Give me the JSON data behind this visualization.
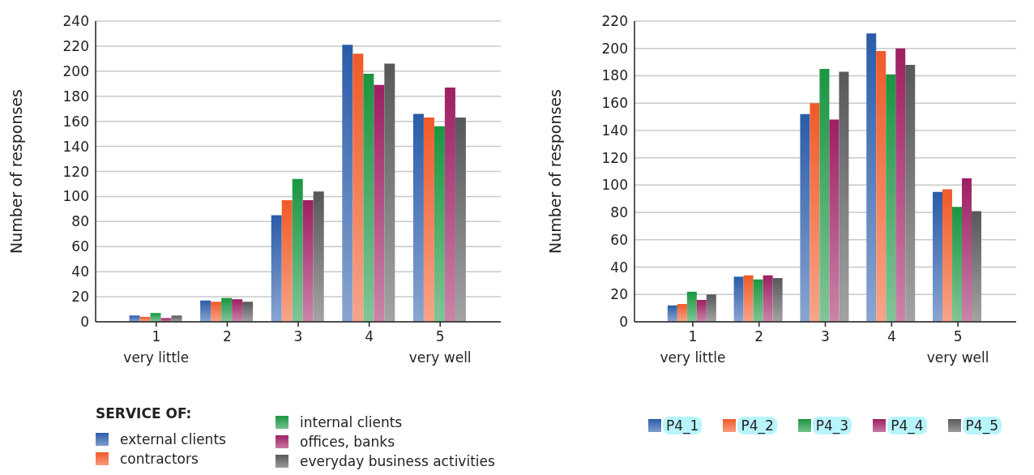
{
  "chart_data": [
    {
      "type": "bar",
      "ylabel": "Number of responses",
      "legend_title": "SERVICE OF:",
      "categories": [
        "1\nvery little",
        "2",
        "3",
        "4",
        "5\nvery well"
      ],
      "ylim": [
        0,
        240
      ],
      "yticks": [
        0,
        20,
        40,
        60,
        80,
        100,
        120,
        140,
        160,
        180,
        200,
        220,
        240
      ],
      "grid": "y",
      "legend": "bottom",
      "series": [
        {
          "name": "external clients",
          "color": "#2a5caa",
          "values": [
            5,
            17,
            85,
            221,
            166
          ]
        },
        {
          "name": "contractors",
          "color": "#f05a28",
          "values": [
            4,
            16,
            97,
            214,
            163
          ]
        },
        {
          "name": "internal clients",
          "color": "#1a9641",
          "values": [
            7,
            19,
            114,
            198,
            156
          ]
        },
        {
          "name": "offices, banks",
          "color": "#9e1f63",
          "values": [
            3,
            18,
            97,
            189,
            187
          ]
        },
        {
          "name": "everyday business activities",
          "color": "#58585a",
          "values": [
            5,
            16,
            104,
            206,
            163
          ]
        }
      ]
    },
    {
      "type": "bar",
      "ylabel": "Number of responses",
      "categories": [
        "1\nvery little",
        "2",
        "3",
        "4",
        "5\nvery well"
      ],
      "ylim": [
        0,
        220
      ],
      "yticks": [
        0,
        20,
        40,
        60,
        80,
        100,
        120,
        140,
        160,
        180,
        200,
        220
      ],
      "grid": "y",
      "legend": "bottom",
      "series": [
        {
          "name": "P4_1",
          "color": "#2a5caa",
          "values": [
            12,
            33,
            152,
            211,
            95
          ]
        },
        {
          "name": "P4_2",
          "color": "#f05a28",
          "values": [
            13,
            34,
            160,
            198,
            97
          ]
        },
        {
          "name": "P4_3",
          "color": "#1a9641",
          "values": [
            22,
            31,
            185,
            181,
            84
          ]
        },
        {
          "name": "P4_4",
          "color": "#9e1f63",
          "values": [
            16,
            34,
            148,
            200,
            105
          ]
        },
        {
          "name": "P4_5",
          "color": "#58585a",
          "values": [
            20,
            32,
            183,
            188,
            81
          ]
        }
      ]
    }
  ]
}
